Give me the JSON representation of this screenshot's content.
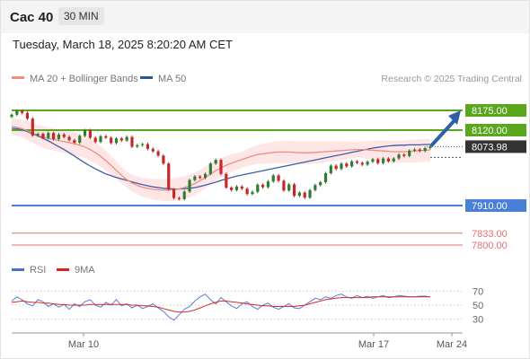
{
  "header": {
    "title": "Cac 40",
    "timeframe": "30 MIN"
  },
  "datetime": "Tuesday, March 18, 2025 8:20:20 AM CET",
  "legend": {
    "items": [
      {
        "label": "MA 20 + Bollinger Bands",
        "color": "#f28b82"
      },
      {
        "label": "MA 50",
        "color": "#2f5597"
      }
    ],
    "credit": "Research © 2025 Trading Central"
  },
  "chart_data": {
    "type": "line",
    "title": "Cac 40",
    "price_axis_range": [
      7800,
      8175
    ],
    "price_lines": [
      {
        "label": "8175.00",
        "value": 8175.0,
        "color": "#5aa61f",
        "style": "resistance"
      },
      {
        "label": "8120.00",
        "value": 8120.0,
        "color": "#5aa61f",
        "style": "resistance"
      },
      {
        "label": "8073.98",
        "value": 8073.98,
        "color": "#333333",
        "style": "last-price"
      },
      {
        "label": "7910.00",
        "value": 7910.0,
        "color": "#4a7fd8",
        "style": "pivot"
      },
      {
        "label": "7833.00",
        "value": 7833.0,
        "color": "#e46e6e",
        "style": "support"
      },
      {
        "label": "7800.00",
        "value": 7800.0,
        "color": "#e46e6e",
        "style": "support"
      }
    ],
    "x_ticks": [
      "Mar 10",
      "Mar 17",
      "Mar 24"
    ],
    "series": [
      {
        "name": "Cac 40",
        "values": [
          8163,
          8174,
          8168,
          8152,
          8105,
          8110,
          8098,
          8112,
          8095,
          8108,
          8101,
          8092,
          8085,
          8104,
          8120,
          8099,
          8087,
          8103,
          8099,
          8084,
          8097,
          8091,
          8101,
          8074,
          8078,
          8081,
          8068,
          8061,
          8049,
          8027,
          7955,
          7931,
          7928,
          7949,
          7981,
          7991,
          7987,
          7998,
          8027,
          8037,
          7998,
          7960,
          7953,
          7963,
          7957,
          7942,
          7948,
          7968,
          7961,
          7977,
          7994,
          7979,
          7952,
          7969,
          7937,
          7946,
          7932,
          7953,
          7967,
          7975,
          8000,
          8021,
          8012,
          8027,
          8019,
          8033,
          8029,
          8024,
          8032,
          8039,
          8028,
          8041,
          8033,
          8041,
          8052,
          8048,
          8063,
          8066,
          8062,
          8070,
          8074
        ]
      },
      {
        "name": "MA 20",
        "values": [
          8130,
          8128,
          8124,
          8118,
          8112,
          8106,
          8101,
          8097,
          8094,
          8091,
          8088,
          8085,
          8082,
          8078,
          8073,
          8066,
          8057,
          8047,
          8035,
          8022,
          8008,
          7994,
          7982,
          7973,
          7966,
          7961,
          7958,
          7955,
          7954,
          7953,
          7953,
          7954,
          7956,
          7960,
          7965,
          7971,
          7979,
          7988,
          7998,
          8007,
          8015,
          8022,
          8028,
          8033,
          8038,
          8043,
          8048,
          8052,
          8054,
          8056,
          8058,
          8059,
          8059,
          8059,
          8058,
          8057,
          8057,
          8057,
          8058,
          8059,
          8060,
          8061,
          8062,
          8063,
          8064,
          8065,
          8066,
          8066,
          8065,
          8064,
          8063,
          8062,
          8061,
          8060,
          8060,
          8060,
          8061,
          8062,
          8063,
          8064,
          8065
        ]
      },
      {
        "name": "MA 50",
        "values": [
          8125,
          8124,
          8121,
          8116,
          8110,
          8104,
          8097,
          8090,
          8082,
          8074,
          8066,
          8057,
          8048,
          8038,
          8029,
          8020,
          8012,
          8005,
          7998,
          7993,
          7988,
          7984,
          7980,
          7976,
          7972,
          7968,
          7965,
          7962,
          7960,
          7958,
          7957,
          7956,
          7956,
          7957,
          7958,
          7960,
          7963,
          7967,
          7971,
          7975,
          7980,
          7984,
          7988,
          7992,
          7995,
          7998,
          8001,
          8004,
          8007,
          8010,
          8013,
          8016,
          8019,
          8022,
          8025,
          8028,
          8031,
          8034,
          8037,
          8040,
          8043,
          8046,
          8049,
          8052,
          8055,
          8058,
          8061,
          8064,
          8067,
          8070,
          8072,
          8074,
          8076,
          8077,
          8078,
          8078,
          8079,
          8079,
          8079,
          8080,
          8080
        ]
      }
    ]
  },
  "rsi": {
    "legend": [
      {
        "label": "RSI",
        "color": "#4472c4"
      },
      {
        "label": "9MA",
        "color": "#e02020"
      }
    ],
    "levels": [
      70,
      50,
      30
    ],
    "level_labels": [
      "70",
      "50",
      "30"
    ],
    "series": [
      {
        "name": "RSI",
        "values": [
          56,
          62,
          58,
          52,
          49,
          58,
          55,
          48,
          52,
          47,
          51,
          44,
          52,
          48,
          55,
          58,
          50,
          47,
          54,
          50,
          58,
          49,
          52,
          46,
          50,
          45,
          48,
          52,
          46,
          41,
          33,
          28,
          36,
          44,
          48,
          56,
          62,
          66,
          58,
          52,
          61,
          55,
          49,
          45,
          52,
          55,
          48,
          44,
          50,
          53,
          47,
          44,
          48,
          52,
          46,
          45,
          50,
          55,
          60,
          58,
          62,
          60,
          64,
          66,
          62,
          60,
          64,
          61,
          63,
          60,
          62,
          64,
          61,
          62,
          64,
          63,
          62,
          62,
          63,
          63,
          62
        ]
      },
      {
        "name": "9MA",
        "values": [
          54,
          55,
          56,
          55,
          54,
          54,
          53,
          53,
          52,
          51,
          51,
          50,
          50,
          50,
          50,
          51,
          51,
          51,
          51,
          51,
          51,
          51,
          51,
          50,
          50,
          49,
          49,
          48,
          47,
          45,
          43,
          41,
          40,
          40,
          41,
          43,
          46,
          49,
          52,
          54,
          56,
          56,
          55,
          54,
          53,
          52,
          51,
          50,
          49,
          49,
          48,
          48,
          48,
          48,
          48,
          49,
          50,
          52,
          54,
          56,
          58,
          59,
          60,
          61,
          61,
          61,
          61,
          61,
          61,
          62,
          62,
          62,
          62,
          62,
          62,
          62,
          62,
          62,
          62,
          62,
          62
        ]
      }
    ]
  }
}
